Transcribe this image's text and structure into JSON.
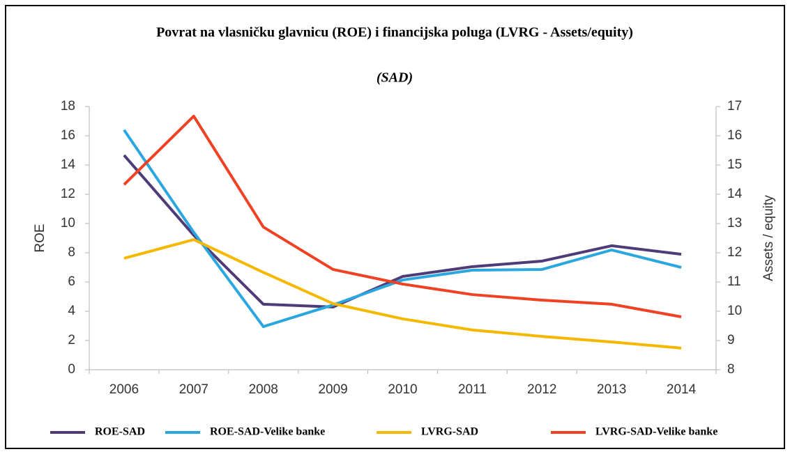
{
  "chart_data": {
    "type": "line",
    "title": "Povrat na vlasničku glavnicu (ROE) i financijska poluga (LVRG - Assets/equity)",
    "subtitle": "(SAD)",
    "y_label": "ROE",
    "y2_label": "Assets / equity",
    "categories": [
      "2006",
      "2007",
      "2008",
      "2009",
      "2010",
      "2011",
      "2012",
      "2013",
      "2014"
    ],
    "ylim": [
      0,
      18
    ],
    "yticks": [
      0,
      2,
      4,
      6,
      8,
      10,
      12,
      14,
      16,
      18
    ],
    "y2lim": [
      8,
      17
    ],
    "y2ticks": [
      8,
      9,
      10,
      11,
      12,
      13,
      14,
      15,
      16,
      17
    ],
    "grid": false,
    "legend": "bottom",
    "series": [
      {
        "name": "ROE-SAD",
        "color": "#4f3b78",
        "values": [
          14.67,
          9.2,
          4.48,
          4.29,
          6.38,
          7.05,
          7.43,
          8.48,
          7.9
        ]
      },
      {
        "name": "ROE-SAD-Velike banke",
        "color": "#2aa7df",
        "values": [
          16.4,
          9.4,
          2.95,
          4.43,
          6.14,
          6.81,
          6.86,
          8.19,
          7.0
        ]
      },
      {
        "name": "LVRG-SAD",
        "color": "#f5b800",
        "axis": "y2",
        "values": [
          11.81,
          12.45,
          11.33,
          10.26,
          9.74,
          9.36,
          9.14,
          8.95,
          8.74
        ]
      },
      {
        "name": "LVRG-SAD-Velike banke",
        "color": "#ef4123",
        "axis": "y2",
        "values": [
          14.33,
          16.67,
          12.88,
          11.43,
          10.93,
          10.57,
          10.38,
          10.24,
          9.81
        ]
      }
    ]
  }
}
